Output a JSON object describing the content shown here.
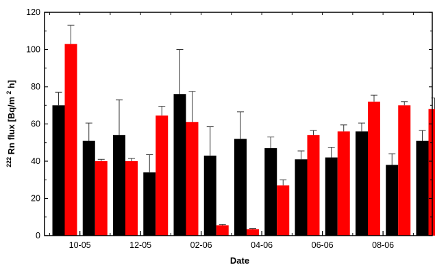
{
  "chart_data": {
    "type": "bar",
    "xlabel": "Date",
    "ylabel_parts": {
      "sup1": "222",
      "main": "Rn flux [Bq/m",
      "sup2": "2",
      "tail": "h]"
    },
    "ylim": [
      0,
      120
    ],
    "y_ticks": [
      0,
      20,
      40,
      60,
      80,
      100,
      120
    ],
    "x_tick_labels": [
      "10-05",
      "12-05",
      "02-06",
      "04-06",
      "06-06",
      "08-06"
    ],
    "grid": false,
    "colors": {
      "series_black": "#000000",
      "series_red": "#ff0000",
      "axis": "#000000"
    },
    "series": [
      {
        "color_key": "series_black",
        "values": [
          70,
          51,
          54,
          34,
          76,
          43,
          52,
          47,
          41,
          42,
          56,
          38,
          51
        ],
        "errors": [
          7,
          9.5,
          19,
          9.5,
          24,
          15.5,
          14.5,
          6,
          4.5,
          5.5,
          4.5,
          6,
          5.5
        ]
      },
      {
        "color_key": "series_red",
        "values": [
          103,
          40,
          40,
          64.5,
          61,
          5.5,
          3.5,
          27,
          54,
          56,
          72,
          70,
          68
        ],
        "errors": [
          10,
          1,
          1.5,
          5,
          16.5,
          0.5,
          0.3,
          3,
          2.5,
          3.5,
          3.5,
          2,
          6
        ]
      }
    ]
  }
}
